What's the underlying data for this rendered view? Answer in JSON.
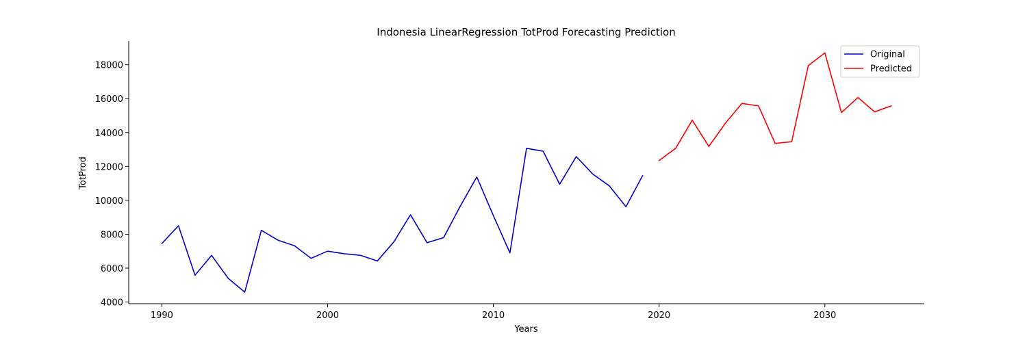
{
  "chart_data": {
    "type": "line",
    "title": "Indonesia LinearRegression TotProd Forecasting Prediction",
    "xlabel": "Years",
    "ylabel": "TotProd",
    "xlim": [
      1988,
      2036
    ],
    "ylim": [
      3900,
      19400
    ],
    "xticks": [
      1990,
      2000,
      2010,
      2020,
      2030
    ],
    "yticks": [
      4000,
      6000,
      8000,
      10000,
      12000,
      14000,
      16000,
      18000
    ],
    "grid": false,
    "legend": "top-right",
    "series": [
      {
        "name": "Original",
        "color": "#0000cc",
        "x": [
          1990,
          1991,
          1992,
          1993,
          1994,
          1995,
          1996,
          1997,
          1998,
          1999,
          2000,
          2001,
          2002,
          2003,
          2004,
          2005,
          2006,
          2007,
          2008,
          2009,
          2010,
          2011,
          2012,
          2013,
          2014,
          2015,
          2016,
          2017,
          2018,
          2019
        ],
        "y": [
          7450,
          8500,
          5580,
          6750,
          5400,
          4580,
          8230,
          7650,
          7320,
          6580,
          7000,
          6850,
          6750,
          6420,
          7550,
          9150,
          7500,
          7800,
          9650,
          11380,
          9100,
          6900,
          13070,
          12900,
          10950,
          12580,
          11550,
          10850,
          9620,
          11450
        ]
      },
      {
        "name": "Predicted",
        "color": "#ff0000",
        "x": [
          2020,
          2021,
          2022,
          2023,
          2024,
          2025,
          2026,
          2027,
          2028,
          2029,
          2030,
          2031,
          2032,
          2033,
          2034
        ],
        "y": [
          12350,
          13070,
          14730,
          13180,
          14550,
          15720,
          15570,
          13360,
          13460,
          17950,
          18700,
          15180,
          16070,
          15220,
          15570
        ]
      }
    ]
  }
}
